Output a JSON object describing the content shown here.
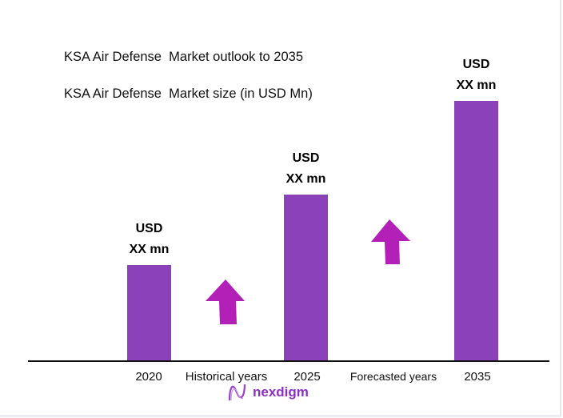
{
  "chart_data": {
    "type": "bar",
    "title": "KSA Air Defense  Market outlook to 2035",
    "subtitle": "KSA Air Defense  Market size (in USD Mn)",
    "categories": [
      "2020",
      "2025",
      "2035"
    ],
    "values_relative_percent_of_max": [
      37,
      64,
      100
    ],
    "data_labels": [
      [
        "USD",
        "XX mn"
      ],
      [
        "USD",
        "XX mn"
      ],
      [
        "USD",
        "XX mn"
      ]
    ],
    "period_labels": [
      "Historical years",
      "Forecasted years"
    ],
    "grid": false,
    "bar_color": "#8B41BA",
    "arrow_color": "#B220B8",
    "arrows": [
      "up-arrow-icon",
      "up-arrow-icon"
    ]
  },
  "logo": {
    "text": "nexdigm"
  }
}
